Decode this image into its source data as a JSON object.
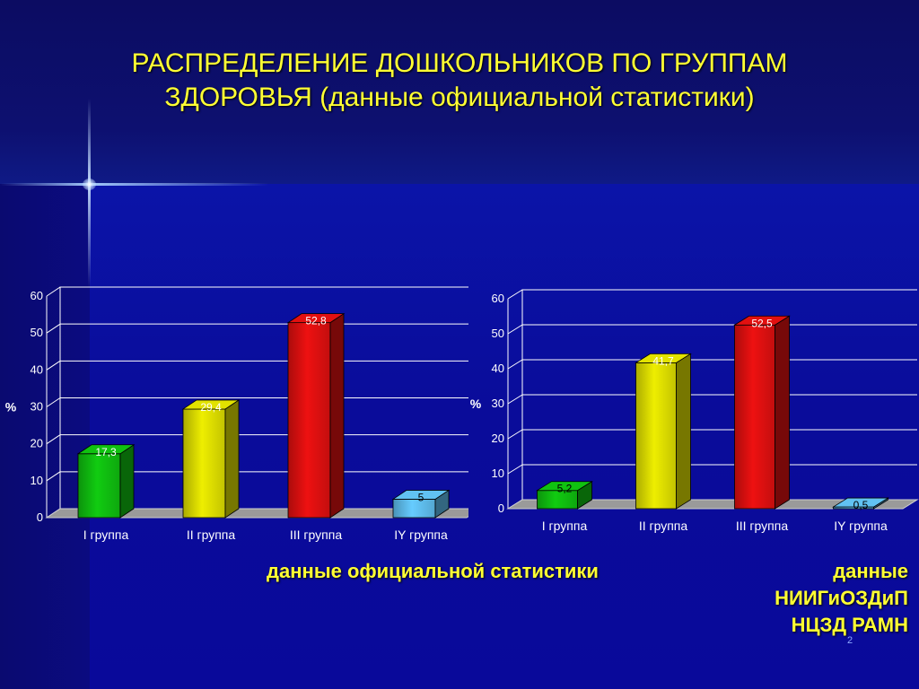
{
  "title": {
    "line1": "РАСПРЕДЕЛЕНИЕ ДОШКОЛЬНИКОВ ПО ГРУППАМ",
    "line2": "ЗДОРОВЬЯ (данные официальной статистики)"
  },
  "colors": {
    "title": "#ffff33",
    "caption": "#ffff33",
    "bar_green": "#11cc11",
    "bar_yellow": "#eeee00",
    "bar_red": "#ee1111",
    "bar_lightblue": "#66ccff"
  },
  "chart_data": [
    {
      "type": "bar",
      "categories": [
        "I группа",
        "II группа",
        "III группа",
        "IY группа"
      ],
      "values": [
        17.3,
        29.4,
        52.8,
        5
      ],
      "value_labels": [
        "17,3",
        "29,4",
        "52,8",
        "5"
      ],
      "bar_colors": [
        "#11cc11",
        "#eeee00",
        "#ee1111",
        "#66ccff"
      ],
      "ylabel": "%",
      "ylim": [
        0,
        60
      ],
      "yticks": [
        "0",
        "10",
        "20",
        "30",
        "40",
        "50",
        "60"
      ],
      "grid": true,
      "style": "3d"
    },
    {
      "type": "bar",
      "categories": [
        "I группа",
        "II группа",
        "III группа",
        "IY группа"
      ],
      "values": [
        5.2,
        41.7,
        52.5,
        0.5
      ],
      "value_labels": [
        "5,2",
        "41,7",
        "52,5",
        "0,5"
      ],
      "bar_colors": [
        "#11cc11",
        "#eeee00",
        "#ee1111",
        "#66ccff"
      ],
      "ylabel": "%",
      "ylim": [
        0,
        60
      ],
      "yticks": [
        "0",
        "10",
        "20",
        "30",
        "40",
        "50",
        "60"
      ],
      "grid": true,
      "style": "3d"
    }
  ],
  "captions": {
    "left": "данные официальной статистики",
    "right_line1": "данные",
    "right_line2": "НИИГиОЗДиП",
    "right_line3": "НЦЗД РАМН"
  },
  "page_number": "2"
}
